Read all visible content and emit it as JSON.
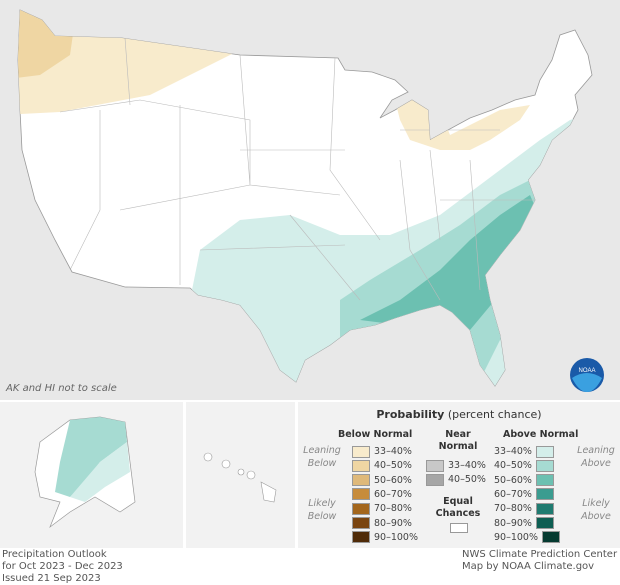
{
  "map": {
    "note": "AK and HI not to scale",
    "logo": "NOAA"
  },
  "legend": {
    "title": "Probability",
    "title_sub": "(percent chance)",
    "below": {
      "header": "Below Normal",
      "leaning": "Leaning Below",
      "likely": "Likely Below",
      "items": [
        {
          "label": "33–40%",
          "color": "#f8ebcc"
        },
        {
          "label": "40–50%",
          "color": "#efd6a3"
        },
        {
          "label": "50–60%",
          "color": "#dfb97a"
        },
        {
          "label": "60–70%",
          "color": "#c78c3c"
        },
        {
          "label": "70–80%",
          "color": "#a3661c"
        },
        {
          "label": "80–90%",
          "color": "#7a4510"
        },
        {
          "label": "90–100%",
          "color": "#4f2b08"
        }
      ]
    },
    "near": {
      "header": "Near Normal",
      "items": [
        {
          "label": "33–40%",
          "color": "#c8c8c8"
        },
        {
          "label": "40–50%",
          "color": "#a6a6a6"
        }
      ]
    },
    "equal": {
      "header": "Equal Chances",
      "color": "#ffffff"
    },
    "above": {
      "header": "Above Normal",
      "leaning": "Leaning Above",
      "likely": "Likely Above",
      "items": [
        {
          "label": "33–40%",
          "color": "#d4eeea"
        },
        {
          "label": "40–50%",
          "color": "#a6dbd2"
        },
        {
          "label": "50–60%",
          "color": "#6cc0b1"
        },
        {
          "label": "60–70%",
          "color": "#3b9c90"
        },
        {
          "label": "70–80%",
          "color": "#1f7b70"
        },
        {
          "label": "80–90%",
          "color": "#0d5e52"
        },
        {
          "label": "90–100%",
          "color": "#053a30"
        }
      ]
    }
  },
  "footer": {
    "left": [
      "Precipitation Outlook",
      "for Oct 2023 - Dec 2023",
      "Issued 21 Sep 2023"
    ],
    "right": [
      "NWS Climate Prediction Center",
      "Map by NOAA Climate.gov"
    ]
  }
}
